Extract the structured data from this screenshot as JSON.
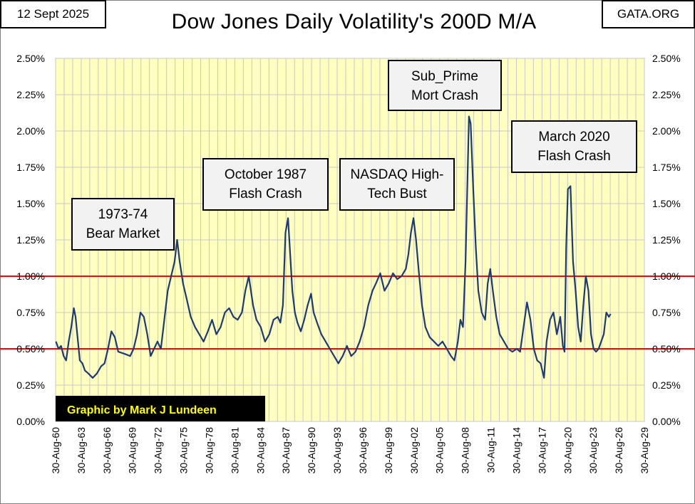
{
  "header": {
    "date": "12 Sept 2025",
    "source": "GATA.ORG",
    "title": "Dow Jones Daily Volatility's 200D M/A"
  },
  "colors": {
    "plot_background": "#ffffc0",
    "grid": "#c8c8c8",
    "series_line": "#1f3a6e",
    "reference_lines": "#ff0000",
    "credit_background": "#000000",
    "credit_text": "#ffff00",
    "annotation_background": "#f2f2f2"
  },
  "credit": "Graphic by Mark J Lundeen",
  "chart_data": {
    "type": "line",
    "title": "Dow Jones Daily Volatility's 200D M/A",
    "x_unit": "year",
    "xlim": [
      1960.66,
      2029.66
    ],
    "ylim": [
      0,
      2.5
    ],
    "y_ticks": [
      0,
      0.25,
      0.5,
      0.75,
      1.0,
      1.25,
      1.5,
      1.75,
      2.0,
      2.25,
      2.5
    ],
    "y_tick_labels": [
      "0.00%",
      "0.25%",
      "0.50%",
      "0.75%",
      "1.00%",
      "1.25%",
      "1.50%",
      "1.75%",
      "2.00%",
      "2.25%",
      "2.50%"
    ],
    "x_tick_labels": [
      "30-Aug-60",
      "30-Aug-63",
      "30-Aug-66",
      "30-Aug-69",
      "30-Aug-72",
      "30-Aug-75",
      "30-Aug-78",
      "30-Aug-81",
      "30-Aug-84",
      "30-Aug-87",
      "30-Aug-90",
      "30-Aug-93",
      "30-Aug-96",
      "30-Aug-99",
      "30-Aug-02",
      "30-Aug-05",
      "30-Aug-08",
      "30-Aug-11",
      "30-Aug-14",
      "30-Aug-17",
      "30-Aug-20",
      "30-Aug-23",
      "30-Aug-26",
      "30-Aug-29"
    ],
    "minor_x_grid_per_major": 3,
    "grid": true,
    "reference_lines": [
      0.5,
      1.0
    ],
    "y_axis_both_sides": true,
    "annotations": [
      {
        "lines": [
          "1973-74",
          "Bear Market"
        ]
      },
      {
        "lines": [
          "October 1987",
          "Flash Crash"
        ]
      },
      {
        "lines": [
          "NASDAQ High-",
          "Tech Bust"
        ]
      },
      {
        "lines": [
          "Sub_Prime",
          "Mort Crash"
        ]
      },
      {
        "lines": [
          "March 2020",
          "Flash Crash"
        ]
      }
    ],
    "series": [
      {
        "x": [
          1960.7,
          1961.0,
          1961.3,
          1961.6,
          1961.9,
          1962.2,
          1962.5,
          1962.8,
          1963.0,
          1963.2,
          1963.5,
          1963.8,
          1964.1,
          1964.5,
          1965.0,
          1965.5,
          1966.0,
          1966.4,
          1966.8,
          1967.2,
          1967.6,
          1968.0,
          1968.5,
          1969.0,
          1969.4,
          1969.8,
          1970.2,
          1970.6,
          1971.0,
          1971.4,
          1971.8,
          1972.2,
          1972.6,
          1973.0,
          1973.4,
          1973.8,
          1974.2,
          1974.6,
          1974.9,
          1975.2,
          1975.6,
          1976.0,
          1976.5,
          1977.0,
          1977.5,
          1978.0,
          1978.5,
          1979.0,
          1979.5,
          1980.0,
          1980.5,
          1981.0,
          1981.5,
          1982.0,
          1982.5,
          1982.9,
          1983.3,
          1983.8,
          1984.2,
          1984.7,
          1985.2,
          1985.7,
          1986.2,
          1986.7,
          1987.0,
          1987.3,
          1987.6,
          1987.9,
          1988.1,
          1988.4,
          1988.7,
          1989.0,
          1989.4,
          1989.8,
          1990.2,
          1990.6,
          1990.9,
          1991.3,
          1991.8,
          1992.3,
          1992.8,
          1993.3,
          1993.8,
          1994.3,
          1994.8,
          1995.3,
          1995.8,
          1996.3,
          1996.8,
          1997.3,
          1997.8,
          1998.2,
          1998.7,
          1999.2,
          1999.7,
          2000.2,
          2000.7,
          2001.2,
          2001.7,
          2002.0,
          2002.3,
          2002.6,
          2002.9,
          2003.2,
          2003.6,
          2004.0,
          2004.5,
          2005.0,
          2005.5,
          2006.0,
          2006.5,
          2007.0,
          2007.4,
          2007.8,
          2008.1,
          2008.4,
          2008.7,
          2008.9,
          2009.1,
          2009.3,
          2009.6,
          2009.9,
          2010.2,
          2010.6,
          2011.0,
          2011.3,
          2011.6,
          2011.9,
          2012.3,
          2012.7,
          2013.2,
          2013.7,
          2014.2,
          2014.7,
          2015.1,
          2015.5,
          2015.9,
          2016.3,
          2016.7,
          2017.1,
          2017.5,
          2017.9,
          2018.2,
          2018.6,
          2019.0,
          2019.4,
          2019.8,
          2020.1,
          2020.3,
          2020.5,
          2020.7,
          2021.0,
          2021.3,
          2021.6,
          2021.9,
          2022.2,
          2022.5,
          2022.8,
          2023.1,
          2023.4,
          2023.7,
          2024.0,
          2024.3,
          2024.6,
          2024.9,
          2025.2,
          2025.5,
          2025.7
        ],
        "values": [
          0.55,
          0.5,
          0.52,
          0.45,
          0.42,
          0.55,
          0.65,
          0.78,
          0.72,
          0.6,
          0.42,
          0.4,
          0.35,
          0.33,
          0.3,
          0.33,
          0.38,
          0.4,
          0.5,
          0.62,
          0.58,
          0.48,
          0.47,
          0.46,
          0.45,
          0.5,
          0.6,
          0.75,
          0.72,
          0.6,
          0.45,
          0.5,
          0.55,
          0.5,
          0.7,
          0.9,
          1.0,
          1.1,
          1.25,
          1.1,
          0.95,
          0.85,
          0.72,
          0.65,
          0.6,
          0.55,
          0.62,
          0.7,
          0.6,
          0.65,
          0.75,
          0.78,
          0.72,
          0.7,
          0.75,
          0.9,
          1.0,
          0.8,
          0.7,
          0.65,
          0.55,
          0.6,
          0.7,
          0.72,
          0.68,
          0.8,
          1.3,
          1.4,
          1.2,
          0.9,
          0.75,
          0.68,
          0.62,
          0.7,
          0.8,
          0.88,
          0.75,
          0.68,
          0.6,
          0.55,
          0.5,
          0.45,
          0.4,
          0.45,
          0.52,
          0.45,
          0.48,
          0.55,
          0.65,
          0.8,
          0.9,
          0.95,
          1.02,
          0.9,
          0.95,
          1.02,
          0.98,
          1.0,
          1.05,
          1.15,
          1.3,
          1.4,
          1.25,
          1.05,
          0.8,
          0.65,
          0.58,
          0.55,
          0.52,
          0.55,
          0.5,
          0.45,
          0.42,
          0.55,
          0.7,
          0.65,
          1.1,
          1.6,
          2.1,
          2.05,
          1.6,
          1.2,
          0.9,
          0.75,
          0.7,
          0.95,
          1.05,
          0.9,
          0.72,
          0.6,
          0.55,
          0.5,
          0.48,
          0.5,
          0.48,
          0.65,
          0.82,
          0.7,
          0.5,
          0.42,
          0.4,
          0.3,
          0.55,
          0.7,
          0.75,
          0.6,
          0.72,
          0.52,
          0.48,
          1.2,
          1.6,
          1.62,
          1.1,
          0.9,
          0.65,
          0.55,
          0.8,
          1.0,
          0.9,
          0.6,
          0.5,
          0.48,
          0.5,
          0.55,
          0.6,
          0.75,
          0.72,
          0.74
        ]
      }
    ]
  }
}
